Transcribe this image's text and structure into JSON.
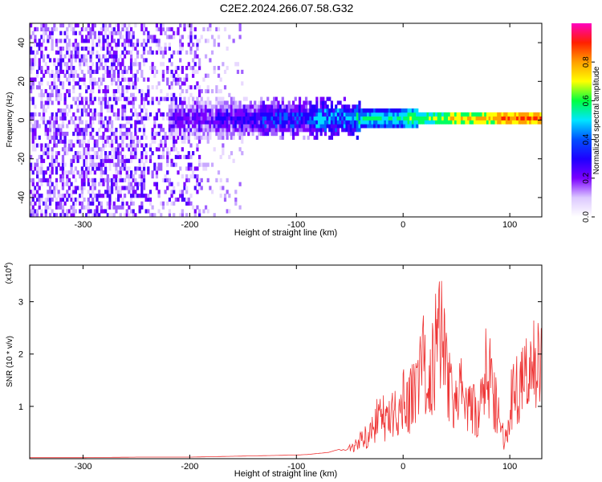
{
  "chart_data": [
    {
      "type": "heatmap",
      "title": "C2E2.2024.266.07.58.G32",
      "xlabel": "Height of straight line (km)",
      "ylabel": "Frequency (Hz)",
      "xlim": [
        -350,
        130
      ],
      "ylim": [
        -50,
        50
      ],
      "xticks": [
        -300,
        -200,
        -100,
        0,
        100
      ],
      "xtick_labels": [
        "-300",
        "-200",
        "-100",
        "0",
        "100"
      ],
      "yticks": [
        -40,
        -20,
        0,
        20,
        40
      ],
      "ytick_labels": [
        "-40",
        "-20",
        "0",
        "20",
        "40"
      ],
      "colorbar": {
        "label": "Normalized spectral amplitude",
        "range": [
          0,
          1
        ],
        "ticks": [
          0,
          0.2,
          0.4,
          0.6,
          0.8
        ],
        "tick_labels": [
          "0.0",
          "0.2",
          "0.4",
          "0.6",
          "0.8"
        ],
        "colormap": [
          "#ffffff",
          "#dcc8ff",
          "#7a00ff",
          "#1e00ff",
          "#0050ff",
          "#00e6ff",
          "#00ff40",
          "#ffff00",
          "#ffa000",
          "#ff2000",
          "#ff00c0"
        ]
      },
      "description_bands": {
        "noise_region_x": [
          -350,
          -190
        ],
        "line_start_x": -220,
        "line_center_freq": 0
      }
    },
    {
      "type": "line",
      "xlabel": "Height of straight line (km)",
      "ylabel": "SNR (10 * v/v)",
      "yscale_label": "(x10",
      "yscale_exp": "4",
      "xlim": [
        -350,
        130
      ],
      "ylim": [
        0,
        3.7
      ],
      "xticks": [
        -300,
        -200,
        -100,
        0,
        100
      ],
      "xtick_labels": [
        "-300",
        "-200",
        "-100",
        "0",
        "100"
      ],
      "yticks": [
        1,
        2,
        3
      ],
      "ytick_labels": [
        "1",
        "2",
        "3"
      ],
      "color": "#ee3333",
      "series": [
        {
          "x": [
            -350,
            -300,
            -250,
            -200,
            -175,
            -150,
            -125,
            -100,
            -90,
            -80,
            -70,
            -60,
            -50,
            -45,
            -40,
            -35,
            -30,
            -25,
            -20,
            -15,
            -10,
            -5,
            0,
            5,
            10,
            15,
            20,
            25,
            30,
            33,
            36,
            40,
            45,
            50,
            55,
            60,
            65,
            70,
            75,
            78,
            80,
            85,
            90,
            95,
            100,
            105,
            110,
            115,
            120,
            125,
            130
          ],
          "y": [
            0.02,
            0.02,
            0.03,
            0.03,
            0.04,
            0.05,
            0.06,
            0.07,
            0.08,
            0.1,
            0.12,
            0.18,
            0.25,
            0.35,
            0.45,
            0.5,
            0.6,
            0.9,
            1.05,
            0.8,
            1.2,
            0.9,
            1.5,
            1.3,
            1.6,
            2.0,
            2.3,
            1.7,
            2.6,
            3.5,
            3.3,
            2.2,
            1.5,
            1.3,
            1.6,
            1.1,
            1.3,
            0.8,
            1.7,
            2.2,
            2.1,
            1.6,
            0.95,
            0.4,
            1.2,
            1.9,
            1.6,
            2.1,
            2.2,
            2.3,
            2.5
          ]
        }
      ]
    }
  ]
}
